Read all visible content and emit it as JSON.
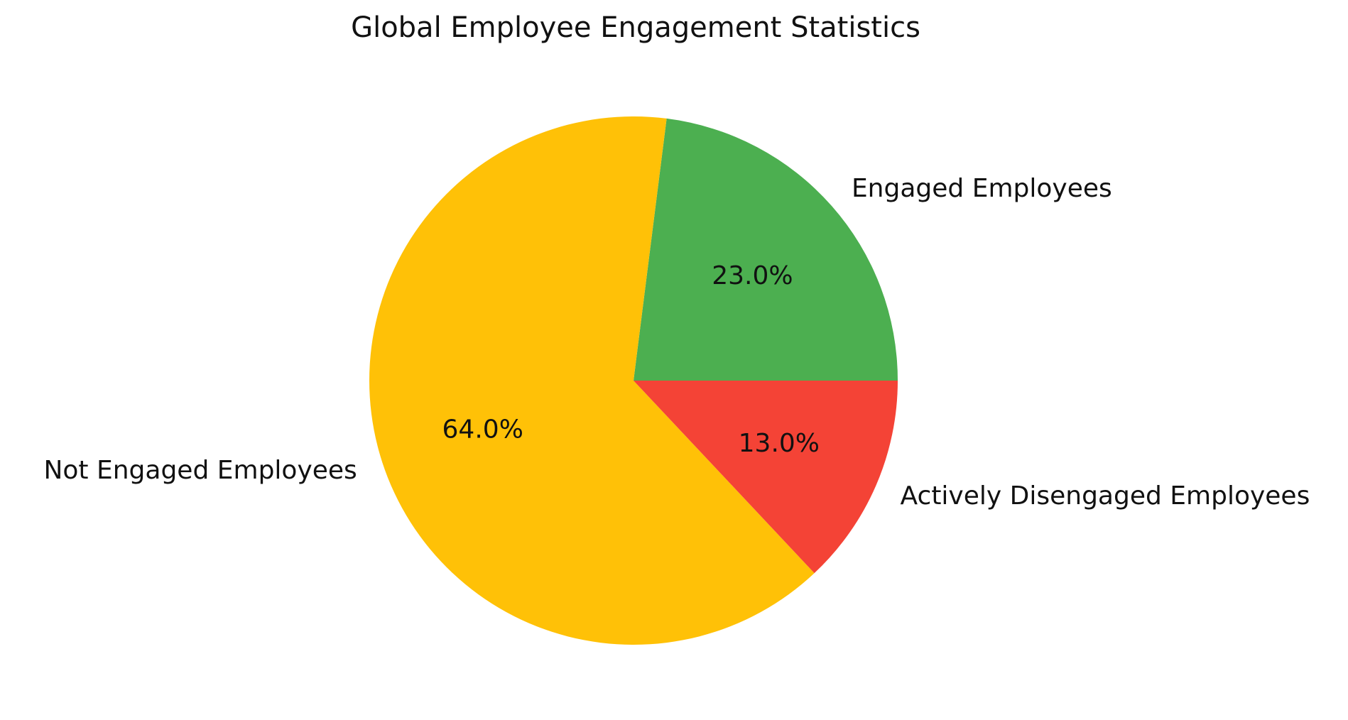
{
  "chart_data": {
    "type": "pie",
    "title": "Global Employee Engagement Statistics",
    "slices": [
      {
        "label": "Engaged Employees",
        "value": 23.0,
        "pct_text": "23.0%",
        "color": "#4CAF50"
      },
      {
        "label": "Not Engaged Employees",
        "value": 64.0,
        "pct_text": "64.0%",
        "color": "#FFC107"
      },
      {
        "label": "Actively Disengaged Employees",
        "value": 13.0,
        "pct_text": "13.0%",
        "color": "#F44336"
      }
    ],
    "start_angle_deg": 0,
    "direction": "counterclockwise",
    "legend": "none"
  }
}
